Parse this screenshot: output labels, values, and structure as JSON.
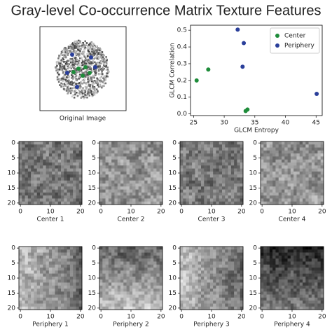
{
  "title": "Gray-level Co-occurrence Matrix Texture Features",
  "original_image": {
    "caption": "Original Image"
  },
  "chart_data": [
    {
      "type": "scatter",
      "xlabel": "GLCM Entropy",
      "ylabel": "GLCM Correlation",
      "xlim": [
        24.5,
        46
      ],
      "ylim": [
        -0.01,
        0.53
      ],
      "xticks": [
        25,
        30,
        35,
        40,
        45
      ],
      "yticks": [
        {
          "value": 0,
          "label": "0.0"
        },
        0.1,
        0.2,
        0.3,
        0.4,
        0.5
      ],
      "legend": "upper right",
      "series": [
        {
          "name": "Center",
          "color": "#1e8c3a",
          "x": [
            25.5,
            27.4,
            33.5,
            33.8
          ],
          "values": [
            0.2,
            0.265,
            0.017,
            0.026
          ]
        },
        {
          "name": "Periphery",
          "color": "#2a3f9a",
          "x": [
            32.2,
            33.2,
            33.0,
            45.1
          ],
          "values": [
            0.504,
            0.423,
            0.282,
            0.12
          ]
        }
      ]
    },
    {
      "type": "image",
      "title": "Center 1",
      "xlim": [
        -0.5,
        20.5
      ],
      "ylim": [
        20.5,
        -0.5
      ],
      "xticks": [
        0,
        10,
        20
      ],
      "yticks": [
        0,
        5,
        10,
        15,
        20
      ]
    },
    {
      "type": "image",
      "title": "Center 2",
      "xlim": [
        -0.5,
        20.5
      ],
      "ylim": [
        20.5,
        -0.5
      ],
      "xticks": [
        0,
        10,
        20
      ],
      "yticks": [
        0,
        5,
        10,
        15,
        20
      ]
    },
    {
      "type": "image",
      "title": "Center 3",
      "xlim": [
        -0.5,
        20.5
      ],
      "ylim": [
        20.5,
        -0.5
      ],
      "xticks": [
        0,
        10,
        20
      ],
      "yticks": [
        0,
        5,
        10,
        15,
        20
      ]
    },
    {
      "type": "image",
      "title": "Center 4",
      "xlim": [
        -0.5,
        20.5
      ],
      "ylim": [
        20.5,
        -0.5
      ],
      "xticks": [
        0,
        10,
        20
      ],
      "yticks": [
        0,
        5,
        10,
        15,
        20
      ]
    },
    {
      "type": "image",
      "title": "Periphery 1",
      "xlim": [
        -0.5,
        20.5
      ],
      "ylim": [
        20.5,
        -0.5
      ],
      "xticks": [
        0,
        10,
        20
      ],
      "yticks": [
        0,
        5,
        10,
        15,
        20
      ]
    },
    {
      "type": "image",
      "title": "Periphery 2",
      "xlim": [
        -0.5,
        20.5
      ],
      "ylim": [
        20.5,
        -0.5
      ],
      "xticks": [
        0,
        10,
        20
      ],
      "yticks": [
        0,
        5,
        10,
        15,
        20
      ]
    },
    {
      "type": "image",
      "title": "Periphery 3",
      "xlim": [
        -0.5,
        20.5
      ],
      "ylim": [
        20.5,
        -0.5
      ],
      "xticks": [
        0,
        10,
        20
      ],
      "yticks": [
        0,
        5,
        10,
        15,
        20
      ]
    },
    {
      "type": "image",
      "title": "Periphery 4",
      "xlim": [
        -0.5,
        20.5
      ],
      "ylim": [
        20.5,
        -0.5
      ],
      "xticks": [
        0,
        10,
        20
      ],
      "yticks": [
        0,
        5,
        10,
        15,
        20
      ]
    }
  ]
}
